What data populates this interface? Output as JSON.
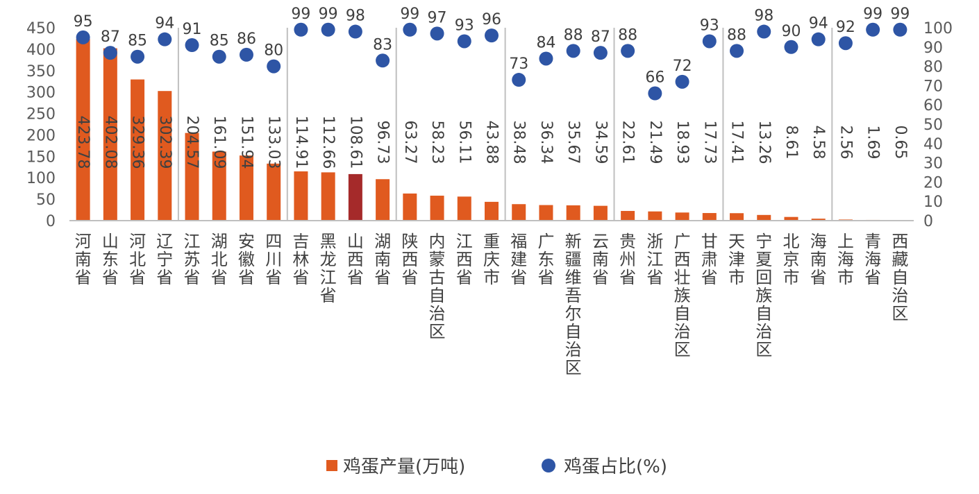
{
  "chart_data": {
    "type": "bar+scatter",
    "categories": [
      "河南省",
      "山东省",
      "河北省",
      "辽宁省",
      "江苏省",
      "湖北省",
      "安徽省",
      "四川省",
      "吉林省",
      "黑龙江省",
      "山西省",
      "湖南省",
      "陕西省",
      "内蒙古自治区",
      "江西省",
      "重庆市",
      "福建省",
      "广东省",
      "新疆维吾尔自治区",
      "云南省",
      "贵州省",
      "浙江省",
      "广西壮族自治区",
      "甘肃省",
      "天津市",
      "宁夏回族自治区",
      "北京市",
      "海南省",
      "上海市",
      "青海省",
      "西藏自治区"
    ],
    "series": [
      {
        "name": "鸡蛋产量(万吨)",
        "type": "bar",
        "axis": "left",
        "color": "#E05A1F",
        "highlight_color": "#A52A2A",
        "highlight_index": 10,
        "values": [
          423.78,
          402.08,
          329.36,
          302.39,
          204.57,
          161.09,
          151.94,
          133.03,
          114.91,
          112.66,
          108.61,
          96.73,
          63.27,
          58.23,
          56.11,
          43.88,
          38.48,
          36.34,
          35.67,
          34.59,
          22.61,
          21.49,
          18.93,
          17.73,
          17.41,
          13.26,
          8.61,
          4.58,
          2.56,
          1.69,
          0.65
        ],
        "labels": [
          "423.78",
          "402.08",
          "329.36",
          "302.39",
          "204.57",
          "161.09",
          "151.94",
          "133.03",
          "114.91",
          "112.66",
          "108.61",
          "96.73",
          "63.27",
          "58.23",
          "56.11",
          "43.88",
          "38.48",
          "36.34",
          "35.67",
          "34.59",
          "22.61",
          "21.49",
          "18.93",
          "17.73",
          "17.41",
          "13.26",
          "8.61",
          "4.58",
          "2.56",
          "1.69",
          "0.65"
        ]
      },
      {
        "name": "鸡蛋占比(%)",
        "type": "scatter",
        "axis": "right",
        "color": "#2E55A5",
        "values": [
          95,
          87,
          85,
          94,
          91,
          85,
          86,
          80,
          99,
          99,
          98,
          83,
          99,
          97,
          93,
          96,
          73,
          84,
          88,
          87,
          88,
          66,
          72,
          93,
          88,
          98,
          90,
          94,
          92,
          99,
          99
        ],
        "labels": [
          "95",
          "87",
          "85",
          "94",
          "91",
          "85",
          "86",
          "80",
          "99",
          "99",
          "98",
          "83",
          "99",
          "97",
          "93",
          "96",
          "73",
          "84",
          "88",
          "87",
          "88",
          "66",
          "72",
          "93",
          "88",
          "98",
          "90",
          "94",
          "92",
          "99",
          "99"
        ]
      }
    ],
    "y_left": {
      "range": [
        0,
        450
      ],
      "ticks": [
        "0",
        "50",
        "100",
        "150",
        "200",
        "250",
        "300",
        "350",
        "400",
        "450"
      ]
    },
    "y_right": {
      "range": [
        0,
        100
      ],
      "ticks": [
        "0",
        "10",
        "20",
        "30",
        "40",
        "50",
        "60",
        "70",
        "80",
        "90",
        "100"
      ]
    },
    "grid": "vertical-every-4",
    "legend": "bottom-center"
  }
}
